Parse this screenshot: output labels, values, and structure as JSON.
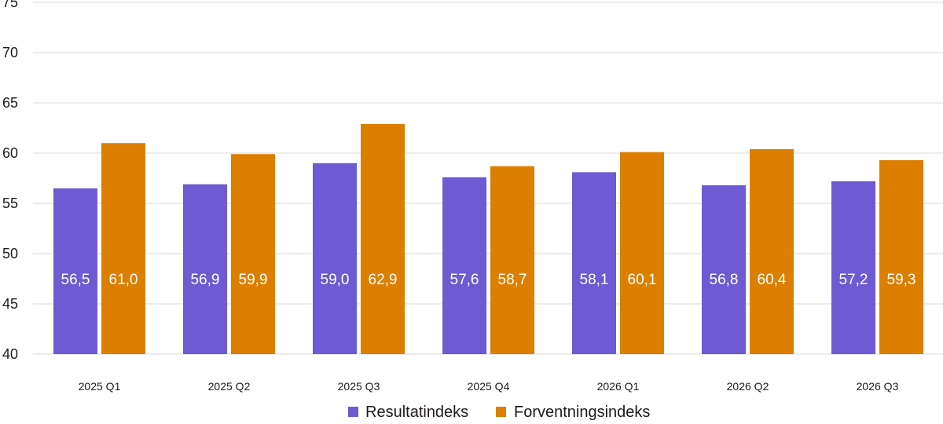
{
  "chart_data": {
    "type": "bar",
    "categories": [
      "2025 Q1",
      "2025 Q2",
      "2025 Q3",
      "2025 Q4",
      "2026 Q1",
      "2026 Q2",
      "2026 Q3"
    ],
    "series": [
      {
        "name": "Resultatindeks",
        "color": "#6e5ad2",
        "values": [
          56.5,
          56.9,
          59.0,
          57.6,
          58.1,
          56.8,
          57.2
        ],
        "labels": [
          "56,5",
          "56,9",
          "59,0",
          "57,6",
          "58,1",
          "56,8",
          "57,2"
        ]
      },
      {
        "name": "Forventningsindeks",
        "color": "#dc7f00",
        "values": [
          61.0,
          59.9,
          62.9,
          58.7,
          60.1,
          60.4,
          59.3
        ],
        "labels": [
          "61,0",
          "59,9",
          "62,9",
          "58,7",
          "60,1",
          "60,4",
          "59,3"
        ]
      }
    ],
    "y_ticks": [
      "40",
      "45",
      "50",
      "55",
      "60",
      "65",
      "70",
      "75"
    ],
    "ylim": [
      40,
      75
    ],
    "grid": true,
    "legend_position": "bottom-center",
    "title": "",
    "xlabel": "",
    "ylabel": ""
  }
}
